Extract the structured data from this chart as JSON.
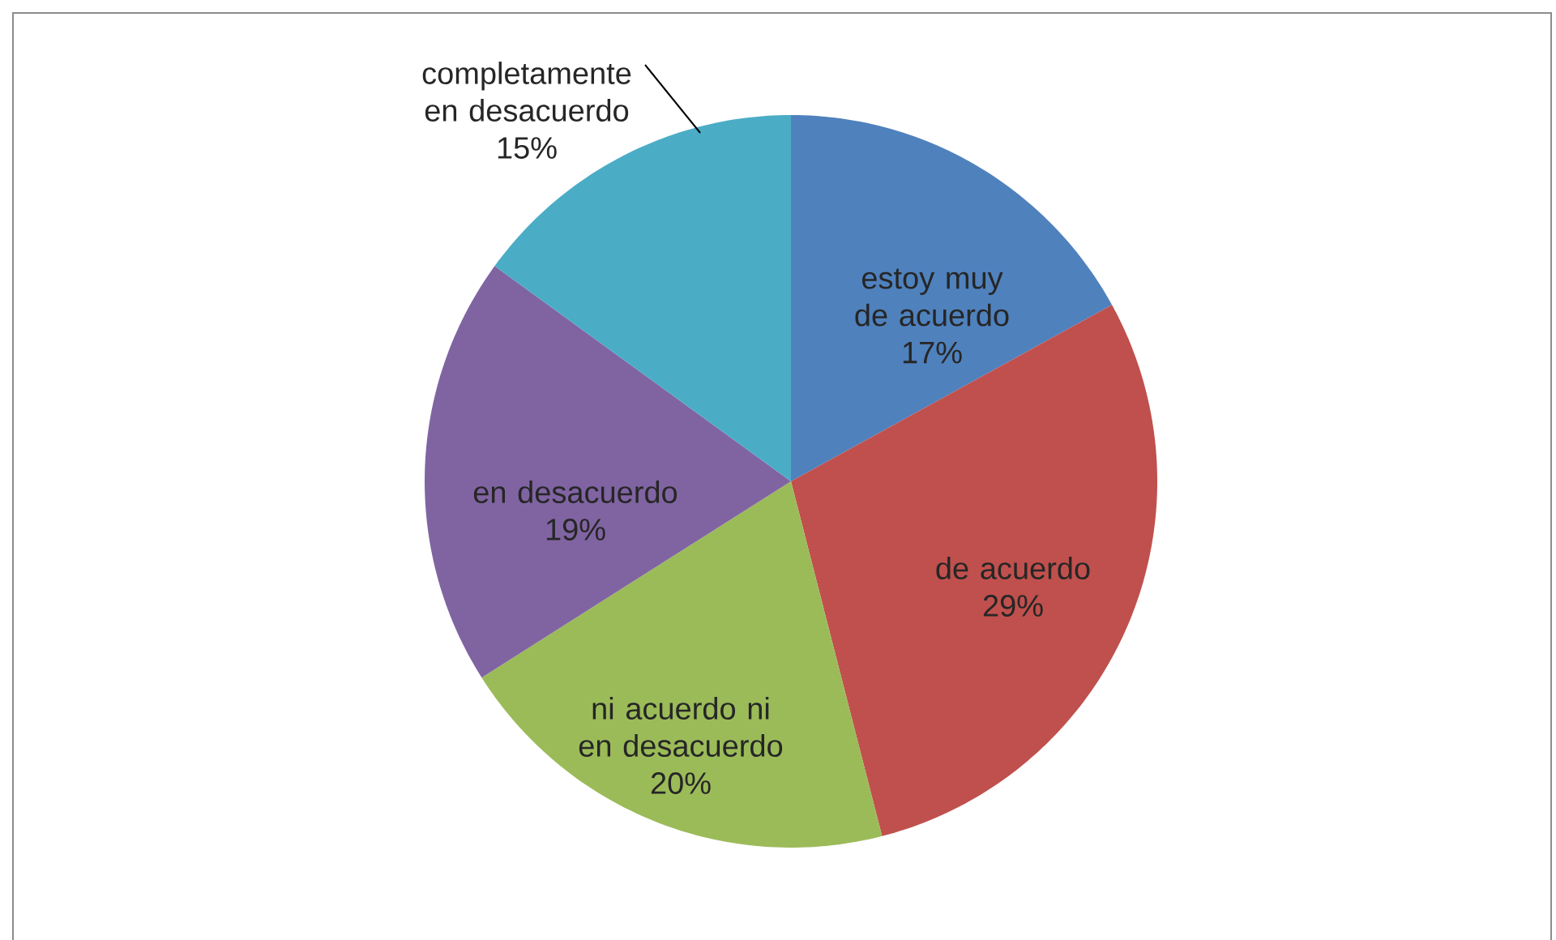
{
  "chart_data": {
    "type": "pie",
    "categories": [
      "estoy muy de acuerdo",
      "de acuerdo",
      "ni acuerdo ni en desacuerdo",
      "en desacuerdo",
      "completamente en desacuerdo"
    ],
    "values": [
      17,
      29,
      20,
      19,
      15
    ],
    "colors": [
      "#4f81bd",
      "#c0504d",
      "#9bbb59",
      "#8064a2",
      "#4bacc6"
    ],
    "value_labels": [
      "17%",
      "29%",
      "20%",
      "19%",
      "15%"
    ]
  }
}
